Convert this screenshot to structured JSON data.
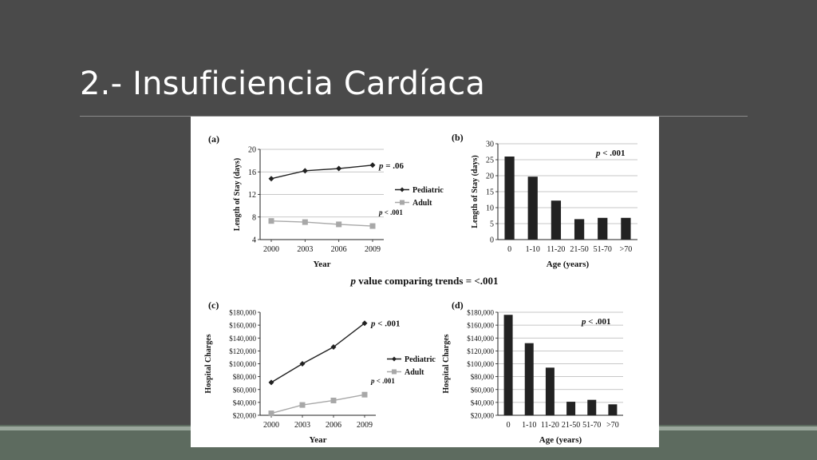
{
  "slide": {
    "title": "2.- Insuficiencia Cardíaca"
  },
  "figure": {
    "center_note": {
      "p": "p",
      "text": " value  comparing  trends = <.001"
    }
  },
  "colors": {
    "background": "#4a4a4a",
    "footer": "#5d6b5f",
    "pediatric": "#222222",
    "adult": "#a8a8a8",
    "bar": "#222222"
  },
  "chart_data": [
    {
      "panel": "(a)",
      "type": "line",
      "x": [
        "2000",
        "2003",
        "2006",
        "2009"
      ],
      "xlabel": "Year",
      "ylabel": "Length of Stay (days)",
      "ylim": [
        4,
        20
      ],
      "yticks": [
        "4",
        "8",
        "12",
        "16",
        "20"
      ],
      "grid": true,
      "legend_position": "right",
      "series": [
        {
          "name": "Pediatric",
          "marker": "diamond",
          "values": [
            14.8,
            16.2,
            16.6,
            17.2
          ]
        },
        {
          "name": "Adult",
          "marker": "square",
          "values": [
            7.3,
            7.1,
            6.7,
            6.4
          ]
        }
      ],
      "annotations": [
        {
          "p": "p",
          "text": " = .06",
          "series": "Pediatric"
        },
        {
          "p": "p",
          "text": " < .001",
          "series": "Adult"
        }
      ]
    },
    {
      "panel": "(b)",
      "type": "bar",
      "categories": [
        "0",
        "1-10",
        "11-20",
        "21-50",
        "51-70",
        ">70"
      ],
      "values": [
        26,
        19.7,
        12.2,
        6.4,
        6.8,
        6.8
      ],
      "xlabel": "Age (years)",
      "ylabel": "Length of Stay (days)",
      "ylim": [
        0,
        30
      ],
      "yticks": [
        "0",
        "5",
        "10",
        "15",
        "20",
        "25",
        "30"
      ],
      "grid": true,
      "annotation": {
        "p": "p",
        "text": " < .001"
      }
    },
    {
      "panel": "(c)",
      "type": "line",
      "x": [
        "2000",
        "2003",
        "2006",
        "2009"
      ],
      "xlabel": "Year",
      "ylabel": "Hospital Charges",
      "ylim": [
        20000,
        180000
      ],
      "yticks": [
        "$20,000",
        "$40,000",
        "$60,000",
        "$80,000",
        "$100,000",
        "$120,000",
        "$140,000",
        "$160,000",
        "$180,000"
      ],
      "grid": false,
      "legend_position": "right",
      "series": [
        {
          "name": "Pediatric",
          "marker": "diamond",
          "values": [
            71000,
            100000,
            126000,
            163000
          ]
        },
        {
          "name": "Adult",
          "marker": "square",
          "values": [
            23000,
            36000,
            43000,
            52000
          ]
        }
      ],
      "annotations": [
        {
          "p": "p",
          "text": " < .001",
          "series": "Pediatric"
        },
        {
          "p": "p",
          "text": " < .001",
          "series": "Adult"
        }
      ]
    },
    {
      "panel": "(d)",
      "type": "bar",
      "categories": [
        "0",
        "1-10",
        "11-20",
        "21-50",
        "51-70",
        ">70"
      ],
      "values": [
        176000,
        132000,
        94000,
        41000,
        44000,
        37000
      ],
      "xlabel": "Age (years)",
      "ylabel": "Hospital Charges",
      "ylim": [
        20000,
        180000
      ],
      "yticks": [
        "$20,000",
        "$40,000",
        "$60,000",
        "$80,000",
        "$100,000",
        "$120,000",
        "$140,000",
        "$160,000",
        "$180,000"
      ],
      "grid": true,
      "annotation": {
        "p": "p",
        "text": " < .001"
      }
    }
  ]
}
